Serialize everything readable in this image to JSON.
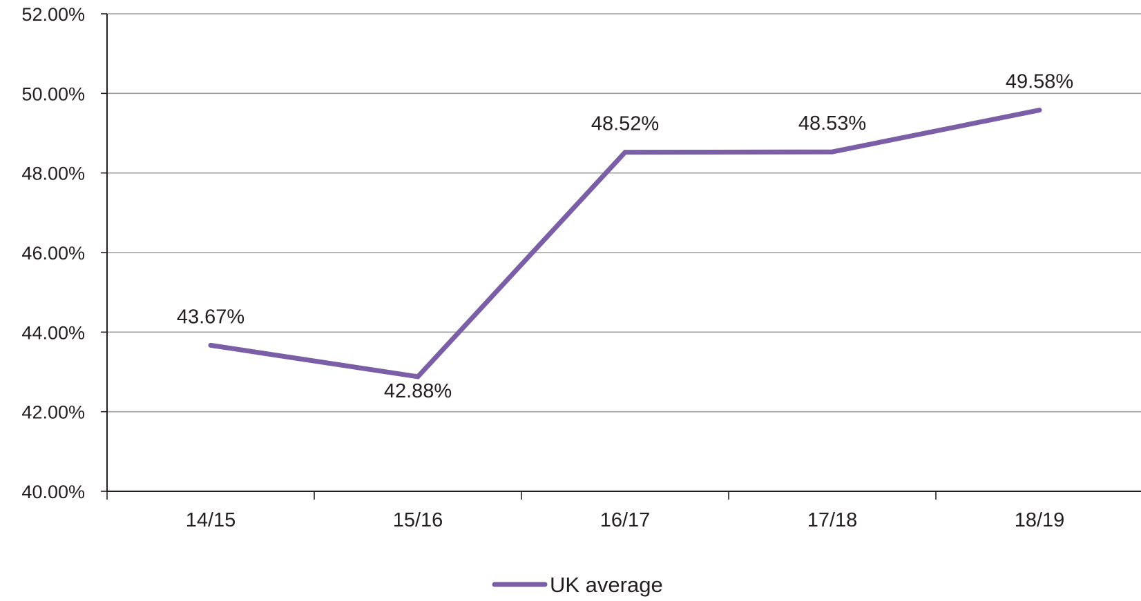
{
  "chart_data": {
    "type": "line",
    "categories": [
      "14/15",
      "15/16",
      "16/17",
      "17/18",
      "18/19"
    ],
    "series": [
      {
        "name": "UK average",
        "values": [
          43.67,
          42.88,
          48.52,
          48.53,
          49.58
        ],
        "data_labels": [
          "43.67%",
          "42.88%",
          "48.52%",
          "48.53%",
          "49.58%"
        ],
        "color": "#7b5fa6"
      }
    ],
    "ylim": [
      40,
      52
    ],
    "yticks": [
      40,
      42,
      44,
      46,
      48,
      50,
      52
    ],
    "ytick_labels": [
      "40.00%",
      "42.00%",
      "44.00%",
      "46.00%",
      "48.00%",
      "50.00%",
      "52.00%"
    ],
    "title": "",
    "xlabel": "",
    "ylabel": "",
    "grid": true,
    "legend_position": "bottom-center",
    "colors": {
      "axis": "#231f20",
      "grid": "#9d9d9c"
    }
  }
}
